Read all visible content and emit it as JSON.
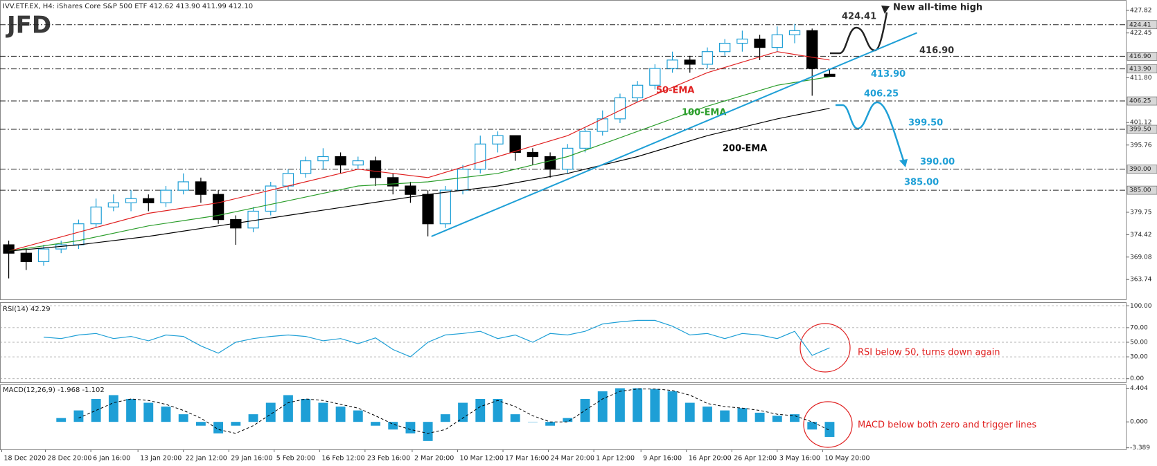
{
  "chart_data": [
    {
      "type": "candlestick",
      "title": "IVV.ETF.EX, H4:  iShares Core S&P 500 ETF  412.62 413.90 411.99 412.10",
      "logo": "JFD",
      "xlim": [
        -0.5,
        64
      ],
      "ylim": [
        359,
        430.3
      ],
      "yticks": [
        427.82,
        422.45,
        {
          "value": 411.8,
          "label": "411.80"
        },
        401.12,
        395.76,
        379.75,
        374.42,
        369.08,
        363.74
      ],
      "up_color": "#1e9fd6",
      "down_color": "#000000",
      "open": [
        372,
        370,
        368,
        371,
        372,
        377,
        381,
        382,
        383,
        382,
        385,
        387,
        384,
        378,
        376,
        380,
        386,
        389,
        392,
        393,
        391,
        392,
        388,
        386,
        384,
        377,
        385,
        390,
        396,
        398,
        394,
        393,
        390,
        395,
        399,
        402,
        407,
        410,
        414,
        416,
        415,
        418,
        420,
        421,
        419,
        422,
        423,
        412.62
      ],
      "high": [
        373,
        371,
        372,
        373,
        378,
        383,
        384,
        385,
        384,
        386,
        389,
        388,
        385,
        379,
        381,
        387,
        390,
        393,
        395,
        394,
        393,
        393,
        389,
        387,
        385,
        386,
        391,
        398,
        399,
        398,
        395,
        394,
        396,
        400,
        404,
        408,
        411,
        415,
        418,
        417,
        419,
        421,
        423,
        422,
        424,
        424.6,
        423.5,
        413.9
      ],
      "low": [
        364,
        366,
        367,
        370,
        371,
        376,
        380,
        380,
        380,
        381,
        384,
        382,
        377,
        372,
        375,
        379,
        385,
        388,
        390,
        389,
        390,
        386,
        384,
        382,
        374,
        376,
        384,
        389,
        394,
        392,
        391,
        388,
        389,
        394,
        398,
        401,
        406,
        409,
        413,
        413,
        414,
        417,
        418,
        416,
        418,
        420,
        407.5,
        411.99
      ],
      "close": [
        370,
        368,
        371,
        372,
        377,
        381,
        382,
        383,
        382,
        385,
        387,
        384,
        378,
        376,
        380,
        386,
        389,
        392,
        393,
        391,
        392,
        388,
        386,
        384,
        377,
        385,
        390,
        396,
        398,
        394,
        393,
        390,
        395,
        399,
        402,
        407,
        410,
        414,
        416,
        415,
        418,
        420,
        421,
        419,
        422,
        423,
        414,
        412.1
      ],
      "series": [
        {
          "name": "50-EMA",
          "color": "#e02020",
          "x": [
            0,
            4,
            8,
            12,
            16,
            20,
            24,
            28,
            32,
            36,
            40,
            44,
            47
          ],
          "values": [
            370.5,
            375,
            379.5,
            382,
            386,
            390,
            388,
            393,
            398,
            406,
            413,
            418,
            416
          ]
        },
        {
          "name": "100-EMA",
          "color": "#2a9d2a",
          "x": [
            0,
            4,
            8,
            12,
            16,
            20,
            24,
            28,
            32,
            36,
            40,
            44,
            47
          ],
          "values": [
            370.5,
            373,
            376.5,
            379,
            382.5,
            386,
            387,
            389,
            393,
            399,
            405,
            410,
            412
          ]
        },
        {
          "name": "200-EMA",
          "color": "#000000",
          "x": [
            0,
            4,
            8,
            12,
            16,
            20,
            24,
            28,
            32,
            36,
            40,
            44,
            47
          ],
          "values": [
            370.5,
            372,
            374,
            376.5,
            379,
            381.5,
            384,
            386,
            389,
            393,
            398,
            402,
            404.5
          ]
        }
      ],
      "trendline": {
        "color": "#1e9fd6",
        "x": [
          24.2,
          52
        ],
        "values": [
          374,
          422.5
        ]
      },
      "levels": [
        {
          "value": 424.41,
          "label": "424.41",
          "color": "#333333"
        },
        {
          "value": 416.9,
          "label": "416.90",
          "color": "#333333"
        },
        {
          "value": 413.9,
          "label": "413.90",
          "color": "#1e9fd6"
        },
        {
          "value": 406.25,
          "label": "406.25",
          "color": "#1e9fd6"
        },
        {
          "value": 399.5,
          "label": "399.50",
          "color": "#1e9fd6"
        },
        {
          "value": 390,
          "label": "390.00",
          "color": "#1e9fd6"
        },
        {
          "value": 385,
          "label": "385.00",
          "color": "#1e9fd6"
        }
      ],
      "annotation": "New all-time high"
    },
    {
      "type": "line",
      "title": "RSI(14) 42.29",
      "xlim": [
        -0.5,
        64
      ],
      "ylim": [
        -5,
        105
      ],
      "yticks": [
        {
          "value": 100,
          "label": "100.00"
        },
        {
          "value": 70,
          "label": "70.00"
        },
        {
          "value": 50,
          "label": "50.00"
        },
        {
          "value": 30,
          "label": "30.00"
        },
        {
          "value": 0,
          "label": "0.00"
        }
      ],
      "color": "#1e9fd6",
      "values": [
        null,
        null,
        57,
        55,
        60,
        62,
        55,
        58,
        52,
        60,
        58,
        45,
        35,
        50,
        55,
        58,
        60,
        58,
        52,
        55,
        48,
        56,
        40,
        30,
        50,
        60,
        62,
        65,
        55,
        60,
        50,
        62,
        60,
        65,
        75,
        78,
        80,
        80,
        72,
        60,
        62,
        55,
        62,
        60,
        55,
        65,
        32,
        42.29
      ],
      "annotation": "RSI below 50, turns down again"
    },
    {
      "type": "bar",
      "title": "MACD(12,26,9) -1.968 -1.102",
      "xlim": [
        -0.5,
        64
      ],
      "ylim": [
        -3.6,
        4.9
      ],
      "yticks": [
        4.404,
        {
          "value": 0,
          "label": "0.000"
        },
        -3.389
      ],
      "color": "#1e9fd6",
      "values": [
        null,
        null,
        null,
        0.5,
        1.5,
        3.0,
        3.5,
        3.0,
        2.5,
        2.0,
        1.0,
        -0.5,
        -1.5,
        -0.5,
        1.0,
        2.5,
        3.5,
        3.0,
        2.5,
        2.0,
        1.5,
        -0.5,
        -1.0,
        -1.5,
        -2.5,
        1.0,
        2.5,
        3.0,
        3.0,
        1.0,
        0.0,
        -0.5,
        0.5,
        3.0,
        4.0,
        4.4,
        4.4,
        4.3,
        4.0,
        2.5,
        2.0,
        1.5,
        1.8,
        1.2,
        0.8,
        1.0,
        -1.0,
        -1.968
      ],
      "signal": {
        "color": "#000000",
        "values": [
          null,
          null,
          null,
          null,
          0.5,
          1.5,
          2.5,
          3.0,
          2.8,
          2.3,
          1.5,
          0.5,
          -1.0,
          -1.5,
          -0.5,
          1.0,
          2.5,
          3.0,
          2.8,
          2.3,
          1.8,
          0.8,
          -0.3,
          -1.0,
          -1.5,
          -1.0,
          0.5,
          2.0,
          2.8,
          2.0,
          0.8,
          0.0,
          0.0,
          1.5,
          3.0,
          4.0,
          4.3,
          4.3,
          4.1,
          3.5,
          2.4,
          2.0,
          1.8,
          1.5,
          1.0,
          0.8,
          0.0,
          -1.102
        ]
      },
      "annotation": "MACD below both zero and trigger lines",
      "xticks": [
        {
          "value": -0.4,
          "label": "18 Dec 2020"
        },
        {
          "value": 2.1,
          "label": "28 Dec 20:00"
        },
        {
          "value": 4.7,
          "label": "6 Jan 16:00"
        },
        {
          "value": 7.4,
          "label": "13 Jan 20:00"
        },
        {
          "value": 10.0,
          "label": "22 Jan 12:00"
        },
        {
          "value": 12.6,
          "label": "29 Jan 16:00"
        },
        {
          "value": 15.2,
          "label": "5 Feb 20:00"
        },
        {
          "value": 17.8,
          "label": "16 Feb 12:00"
        },
        {
          "value": 20.4,
          "label": "23 Feb 16:00"
        },
        {
          "value": 23.1,
          "label": "2 Mar 20:00"
        },
        {
          "value": 25.7,
          "label": "10 Mar 12:00"
        },
        {
          "value": 28.3,
          "label": "17 Mar 16:00"
        },
        {
          "value": 30.9,
          "label": "24 Mar 20:00"
        },
        {
          "value": 33.5,
          "label": "1 Apr 12:00"
        },
        {
          "value": 36.2,
          "label": "9 Apr 16:00"
        },
        {
          "value": 38.8,
          "label": "16 Apr 20:00"
        },
        {
          "value": 41.4,
          "label": "26 Apr 12:00"
        },
        {
          "value": 44.0,
          "label": "3 May 16:00"
        },
        {
          "value": 46.6,
          "label": "10 May 20:00"
        }
      ]
    }
  ]
}
